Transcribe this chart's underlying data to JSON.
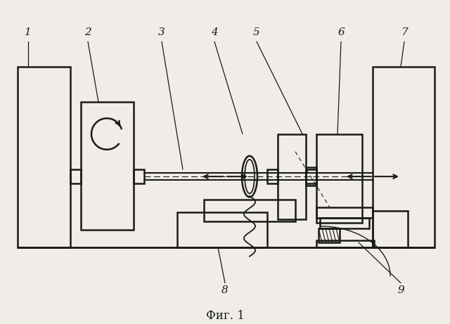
{
  "bg_color": "#f0ede8",
  "line_color": "#1a1a1a",
  "title": "Фиг. 1",
  "labels": [
    "1",
    "2",
    "3",
    "4",
    "5",
    "6",
    "7",
    "8",
    "9"
  ]
}
